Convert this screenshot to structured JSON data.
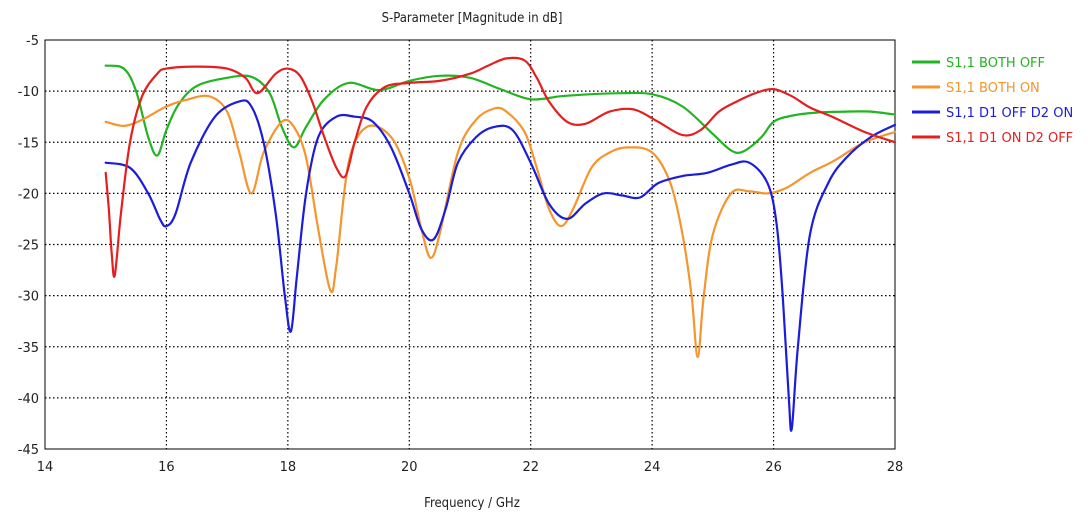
{
  "chart_data": {
    "type": "line",
    "title": "S-Parameter [Magnitude in dB]",
    "xlabel": "Frequency / GHz",
    "ylabel": "",
    "xlim": [
      14,
      28
    ],
    "ylim": [
      -45,
      -5
    ],
    "xticks": [
      14,
      16,
      18,
      20,
      22,
      24,
      26,
      28
    ],
    "yticks": [
      -5,
      -10,
      -15,
      -20,
      -25,
      -30,
      -35,
      -40,
      -45
    ],
    "grid": true,
    "grid_style": "dotted",
    "legend_position": "right",
    "series": [
      {
        "name": "S1,1 BOTH OFF",
        "color": "#22b422",
        "x": [
          15.0,
          15.3,
          15.5,
          15.7,
          15.85,
          16.0,
          16.2,
          16.5,
          17.0,
          17.4,
          17.7,
          17.9,
          18.1,
          18.3,
          18.6,
          19.0,
          19.5,
          20.0,
          20.5,
          21.0,
          21.5,
          22.0,
          22.5,
          23.0,
          23.5,
          24.0,
          24.5,
          25.0,
          25.3,
          25.5,
          25.8,
          26.0,
          26.3,
          26.7,
          27.2,
          27.6,
          28.0
        ],
        "y": [
          -7.5,
          -7.8,
          -10.0,
          -14.5,
          -16.3,
          -13.8,
          -11.3,
          -9.5,
          -8.7,
          -8.6,
          -10.2,
          -13.5,
          -15.5,
          -13.5,
          -10.8,
          -9.2,
          -9.9,
          -9.0,
          -8.5,
          -8.7,
          -9.8,
          -10.8,
          -10.5,
          -10.3,
          -10.2,
          -10.3,
          -11.5,
          -14.2,
          -15.8,
          -15.9,
          -14.5,
          -13.0,
          -12.4,
          -12.1,
          -12.0,
          -12.0,
          -12.3
        ]
      },
      {
        "name": "S1,1 BOTH ON",
        "color": "#f5952d",
        "x": [
          15.0,
          15.3,
          15.6,
          16.0,
          16.3,
          16.7,
          17.0,
          17.2,
          17.4,
          17.6,
          17.9,
          18.1,
          18.3,
          18.5,
          18.7,
          18.8,
          19.0,
          19.3,
          19.7,
          20.0,
          20.2,
          20.35,
          20.5,
          20.8,
          21.1,
          21.4,
          21.6,
          21.9,
          22.1,
          22.3,
          22.5,
          22.7,
          23.0,
          23.3,
          23.6,
          24.0,
          24.3,
          24.5,
          24.65,
          24.75,
          24.85,
          25.0,
          25.3,
          25.6,
          25.9,
          26.2,
          26.6,
          27.0,
          27.5,
          28.0
        ],
        "y": [
          -13.0,
          -13.4,
          -12.8,
          -11.5,
          -10.9,
          -10.5,
          -12.0,
          -16.0,
          -20.0,
          -16.0,
          -13.0,
          -13.5,
          -16.5,
          -23.5,
          -29.5,
          -27.0,
          -17.0,
          -13.5,
          -14.5,
          -18.5,
          -23.5,
          -26.3,
          -24.0,
          -16.0,
          -12.8,
          -11.7,
          -12.0,
          -14.0,
          -17.5,
          -21.5,
          -23.2,
          -21.5,
          -17.5,
          -16.0,
          -15.5,
          -16.0,
          -19.0,
          -24.0,
          -30.0,
          -36.0,
          -30.0,
          -24.0,
          -20.0,
          -19.8,
          -20.0,
          -19.5,
          -18.0,
          -16.8,
          -15.0,
          -14.0
        ]
      },
      {
        "name": "S1,1 D1 OFF D2 ON",
        "color": "#1c1cdb",
        "x": [
          15.0,
          15.4,
          15.7,
          15.9,
          16.0,
          16.15,
          16.4,
          16.8,
          17.2,
          17.4,
          17.6,
          17.8,
          17.95,
          18.05,
          18.15,
          18.3,
          18.5,
          18.8,
          19.1,
          19.4,
          19.7,
          20.0,
          20.2,
          20.4,
          20.6,
          20.8,
          21.1,
          21.4,
          21.7,
          22.0,
          22.3,
          22.6,
          22.9,
          23.2,
          23.5,
          23.8,
          24.1,
          24.5,
          24.9,
          25.3,
          25.6,
          25.9,
          26.05,
          26.15,
          26.25,
          26.3,
          26.4,
          26.6,
          26.9,
          27.2,
          27.6,
          28.0
        ],
        "y": [
          -17.0,
          -17.5,
          -20.0,
          -22.6,
          -23.2,
          -22.0,
          -17.0,
          -12.5,
          -11.0,
          -11.5,
          -15.0,
          -22.0,
          -30.0,
          -33.5,
          -28.0,
          -20.0,
          -14.5,
          -12.5,
          -12.5,
          -13.0,
          -15.5,
          -20.0,
          -23.5,
          -24.5,
          -21.5,
          -17.0,
          -14.5,
          -13.5,
          -13.8,
          -17.0,
          -21.0,
          -22.5,
          -21.0,
          -20.0,
          -20.2,
          -20.4,
          -19.0,
          -18.3,
          -18.0,
          -17.2,
          -17.0,
          -19.0,
          -23.0,
          -30.0,
          -40.0,
          -43.0,
          -35.0,
          -24.0,
          -19.0,
          -16.5,
          -14.5,
          -13.3
        ]
      },
      {
        "name": "S1,1 D1 ON D2 OFF",
        "color": "#e61e1e",
        "x": [
          15.0,
          15.05,
          15.1,
          15.15,
          15.25,
          15.4,
          15.6,
          15.85,
          16.0,
          16.5,
          17.0,
          17.3,
          17.5,
          17.8,
          18.0,
          18.2,
          18.4,
          18.6,
          18.8,
          18.95,
          19.1,
          19.3,
          19.6,
          20.0,
          20.5,
          21.0,
          21.3,
          21.6,
          21.9,
          22.1,
          22.3,
          22.6,
          22.9,
          23.3,
          23.7,
          24.1,
          24.5,
          24.8,
          25.1,
          25.4,
          25.7,
          26.0,
          26.3,
          26.6,
          27.0,
          27.5,
          28.0
        ],
        "y": [
          -18.0,
          -21.5,
          -26.0,
          -28.0,
          -22.0,
          -15.0,
          -10.5,
          -8.3,
          -7.8,
          -7.6,
          -7.8,
          -8.7,
          -10.2,
          -8.3,
          -7.8,
          -8.5,
          -11.0,
          -14.5,
          -17.5,
          -18.3,
          -15.0,
          -11.5,
          -9.6,
          -9.2,
          -9.0,
          -8.3,
          -7.5,
          -6.8,
          -7.0,
          -8.7,
          -11.0,
          -13.0,
          -13.2,
          -12.0,
          -11.8,
          -13.0,
          -14.3,
          -13.8,
          -12.0,
          -11.0,
          -10.2,
          -9.8,
          -10.5,
          -11.6,
          -12.6,
          -14.0,
          -15.0
        ]
      }
    ]
  }
}
